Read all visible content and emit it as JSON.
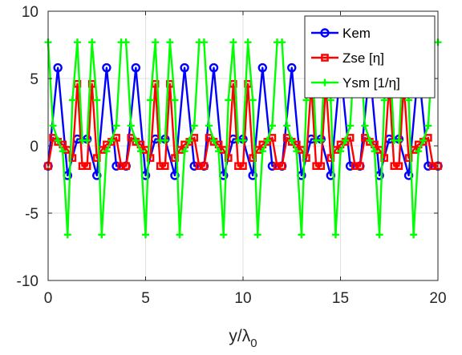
{
  "chart_data": {
    "type": "line",
    "xlabel": "y/λ0",
    "ylabel": "",
    "xlim": [
      0,
      20
    ],
    "ylim": [
      -10,
      10
    ],
    "x_ticks": [
      "0",
      "5",
      "10",
      "15",
      "20"
    ],
    "y_ticks": [
      "-10",
      "-5",
      "0",
      "5",
      "10"
    ],
    "grid": true,
    "legend_position": "top-right",
    "period": 1.5,
    "series": [
      {
        "name": "Kem",
        "color": "#0000ff",
        "marker": "circle",
        "x": [
          0.0,
          0.5,
          1.0,
          1.5,
          2.0,
          2.5,
          3.0,
          3.5,
          4.0,
          4.5,
          5.0,
          5.5,
          6.0,
          6.5,
          7.0,
          7.5,
          8.0,
          8.5,
          9.0,
          9.5,
          10.0,
          10.5,
          11.0,
          11.5,
          12.0,
          12.5,
          13.0,
          13.5,
          14.0,
          14.5,
          15.0,
          15.5,
          16.0,
          16.5,
          17.0,
          17.5,
          18.0,
          18.5,
          19.0,
          19.5,
          20.0
        ],
        "y": [
          -1.5,
          5.8,
          -2.2,
          0.5,
          0.5,
          -2.2,
          5.8,
          -1.5,
          -1.5,
          5.8,
          -2.2,
          0.5,
          0.5,
          -2.2,
          5.8,
          -1.5,
          -1.5,
          5.8,
          -2.2,
          0.5,
          0.5,
          -2.2,
          5.8,
          -1.5,
          -1.5,
          5.8,
          -2.2,
          0.5,
          0.5,
          -2.2,
          5.8,
          -1.5,
          -1.5,
          5.8,
          -2.2,
          0.5,
          0.5,
          -2.2,
          5.8,
          -1.5,
          -1.5
        ]
      },
      {
        "name": "Zse [η]",
        "color": "#ff0000",
        "marker": "square",
        "x": [
          0.0,
          0.25,
          0.5,
          0.75,
          1.0,
          1.25,
          1.5,
          1.75,
          2.0,
          2.25,
          2.5,
          2.75,
          3.0,
          3.25,
          3.5,
          3.75,
          4.0,
          4.25,
          4.5,
          4.75,
          5.0,
          5.25,
          5.5,
          5.75,
          6.0,
          6.25,
          6.5,
          6.75,
          7.0,
          7.25,
          7.5,
          7.75,
          8.0,
          8.25,
          8.5,
          8.75,
          9.0,
          9.25,
          9.5,
          9.75,
          10.0,
          10.25,
          10.5,
          10.75,
          11.0,
          11.25,
          11.5,
          11.75,
          12.0,
          12.25,
          12.5,
          12.75,
          13.0,
          13.25,
          13.5,
          13.75,
          14.0,
          14.25,
          14.5,
          14.75,
          15.0,
          15.25,
          15.5,
          15.75,
          16.0,
          16.25,
          16.5,
          16.75,
          17.0,
          17.25,
          17.5,
          17.75,
          18.0,
          18.25,
          18.5,
          18.75,
          19.0,
          19.25,
          19.5,
          19.75,
          20.0
        ],
        "y": [
          -1.5,
          0.6,
          0.3,
          0.1,
          -0.3,
          -0.9,
          4.6,
          -1.5,
          -1.5,
          4.6,
          -0.9,
          -0.3,
          0.1,
          0.3,
          0.6,
          -1.5,
          -1.5,
          0.6,
          0.3,
          0.1,
          -0.3,
          -0.9,
          4.6,
          -1.5,
          -1.5,
          4.6,
          -0.9,
          -0.3,
          0.1,
          0.3,
          0.6,
          -1.5,
          -1.5,
          0.6,
          0.3,
          0.1,
          -0.3,
          -0.9,
          4.6,
          -1.5,
          -1.5,
          4.6,
          -0.9,
          -0.3,
          0.1,
          0.3,
          0.6,
          -1.5,
          -1.5,
          0.6,
          0.3,
          0.1,
          -0.3,
          -0.9,
          4.6,
          -1.5,
          -1.5,
          4.6,
          -0.9,
          -0.3,
          0.1,
          0.3,
          0.6,
          -1.5,
          -1.5,
          0.6,
          0.3,
          0.1,
          -0.3,
          -0.9,
          4.6,
          -1.5,
          -1.5,
          4.6,
          -0.9,
          -0.3,
          0.1,
          0.3,
          0.6,
          -1.5,
          -1.5
        ]
      },
      {
        "name": "Ysm [1/η]",
        "color": "#00ff00",
        "marker": "plus",
        "x": [
          0.0,
          0.25,
          0.5,
          0.75,
          1.0,
          1.25,
          1.5,
          1.75,
          2.0,
          2.25,
          2.5,
          2.75,
          3.0,
          3.25,
          3.5,
          3.75,
          4.0,
          4.25,
          4.5,
          4.75,
          5.0,
          5.25,
          5.5,
          5.75,
          6.0,
          6.25,
          6.5,
          6.75,
          7.0,
          7.25,
          7.5,
          7.75,
          8.0,
          8.25,
          8.5,
          8.75,
          9.0,
          9.25,
          9.5,
          9.75,
          10.0,
          10.25,
          10.5,
          10.75,
          11.0,
          11.25,
          11.5,
          11.75,
          12.0,
          12.25,
          12.5,
          12.75,
          13.0,
          13.25,
          13.5,
          13.75,
          14.0,
          14.25,
          14.5,
          14.75,
          15.0,
          15.25,
          15.5,
          15.75,
          16.0,
          16.25,
          16.5,
          16.75,
          17.0,
          17.25,
          17.5,
          17.75,
          18.0,
          18.25,
          18.5,
          18.75,
          19.0,
          19.25,
          19.5,
          19.75,
          20.0
        ],
        "y": [
          7.7,
          1.5,
          0.4,
          -0.4,
          -6.6,
          3.4,
          7.7,
          0.4,
          0.4,
          7.7,
          3.4,
          -6.6,
          -0.4,
          0.4,
          1.5,
          7.7,
          7.7,
          1.5,
          0.4,
          -0.4,
          -6.6,
          3.4,
          7.7,
          0.4,
          0.4,
          7.7,
          3.4,
          -6.6,
          -0.4,
          0.4,
          1.5,
          7.7,
          7.7,
          1.5,
          0.4,
          -0.4,
          -6.6,
          3.4,
          7.7,
          0.4,
          0.4,
          7.7,
          3.4,
          -6.6,
          -0.4,
          0.4,
          1.5,
          7.7,
          7.7,
          1.5,
          0.4,
          -0.4,
          -6.6,
          3.4,
          7.7,
          0.4,
          0.4,
          7.7,
          3.4,
          -6.6,
          -0.4,
          0.4,
          1.5,
          7.7,
          7.7,
          1.5,
          0.4,
          -0.4,
          -6.6,
          3.4,
          7.7,
          0.4,
          0.4,
          7.7,
          3.4,
          -6.6,
          -0.4,
          0.4,
          1.5,
          7.7,
          7.7
        ]
      }
    ]
  }
}
